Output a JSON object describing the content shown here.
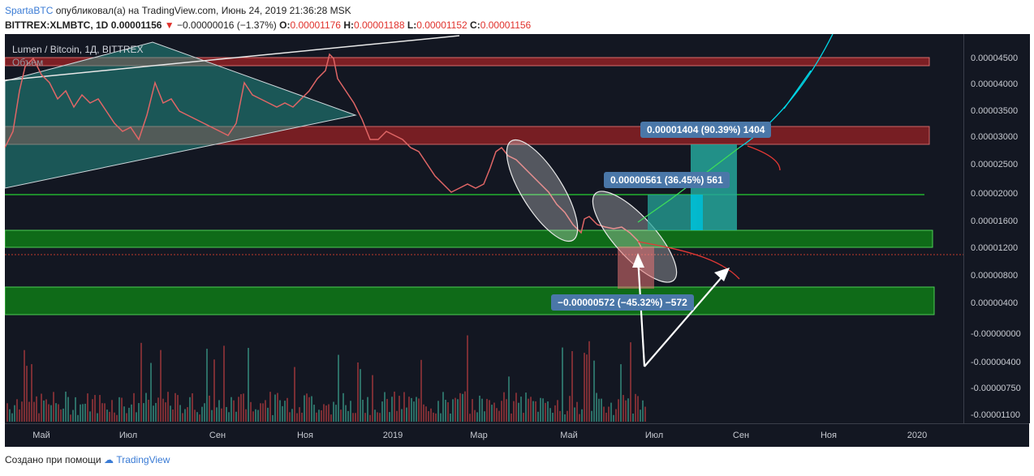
{
  "header": {
    "author": "SpartaBTC",
    "published_text": "опубликовал(а) на TradingView.com, Июнь 24, 2019 21:36:28 MSK",
    "symbol": "BITTREX:XLMBTC, 1D",
    "price": "0.00001156",
    "change": "−0.00000016 (−1.37%)",
    "open_label": "O:",
    "open": "0.00001176",
    "high_label": "H:",
    "high": "0.00001188",
    "low_label": "L:",
    "low": "0.00001152",
    "close_label": "C:",
    "close": "0.00001156",
    "down_color": "#e0312b"
  },
  "chart": {
    "title": "Lumen / Bitcoin, 1Д, BITTREX",
    "volume_label": "Объем",
    "y_ticks": [
      "0.00004500",
      "0.00004000",
      "0.00003500",
      "0.00003000",
      "0.00002500",
      "0.00002000",
      "0.00001600",
      "0.00001200",
      "0.00000800",
      "0.00000400",
      "-0.00000000",
      "-0.00000400",
      "-0.00000750",
      "-0.00001100"
    ],
    "x_ticks": [
      "Май",
      "Июл",
      "Сен",
      "Ноя",
      "2019",
      "Мар",
      "Май",
      "Июл",
      "Сен",
      "Ноя",
      "2020"
    ],
    "labels": {
      "target_big": "0.00001404 (90.39%) 1404",
      "target_small": "0.00000561 (36.45%) 561",
      "stop": "−0.00000572 (−45.32%) −572"
    },
    "colors": {
      "background": "#131722",
      "green_zone": "#0f6b18",
      "red_zone": "#7d1f24",
      "teal": "#26a69a",
      "cyan": "#00bcd4"
    }
  },
  "footer": {
    "made_with": "Создано при помощи",
    "brand": "TradingView"
  }
}
